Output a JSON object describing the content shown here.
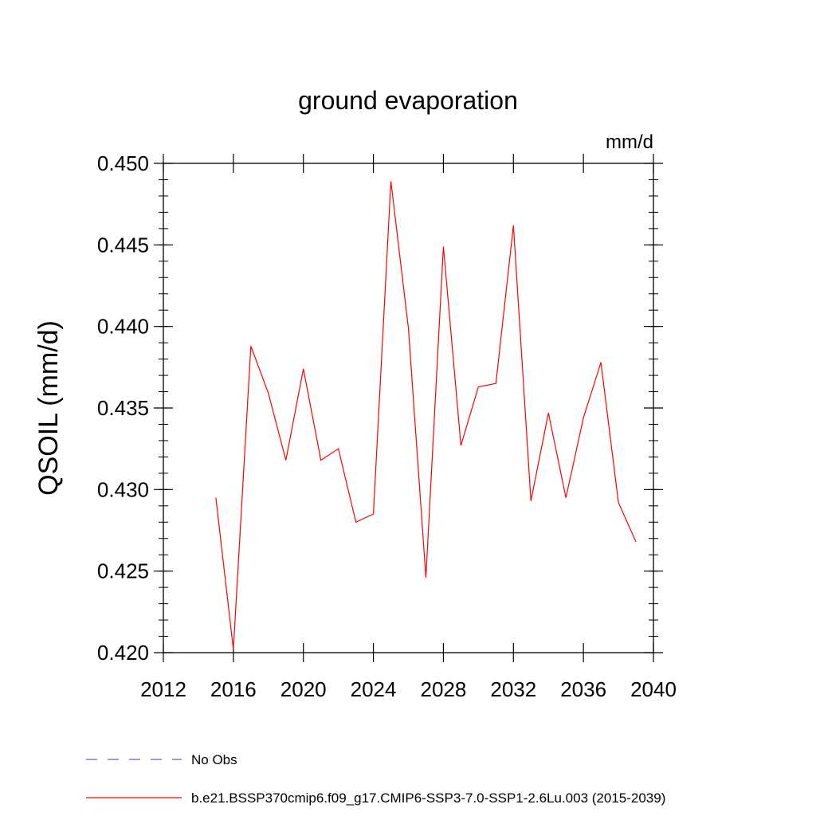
{
  "chart_data": {
    "type": "line",
    "title": "ground evaporation",
    "units_label": "mm/d",
    "ylabel": "QSOIL  (mm/d)",
    "xlabel": "",
    "xlim": [
      2012,
      2040
    ],
    "ylim": [
      0.42,
      0.45
    ],
    "x_ticks": [
      2012,
      2016,
      2020,
      2024,
      2028,
      2032,
      2036,
      2040
    ],
    "x_tick_labels": [
      "2012",
      "2016",
      "2020",
      "2024",
      "2028",
      "2032",
      "2036",
      "2040"
    ],
    "y_ticks": [
      0.42,
      0.425,
      0.43,
      0.435,
      0.44,
      0.445,
      0.45
    ],
    "y_tick_labels": [
      "0.420",
      "0.425",
      "0.430",
      "0.435",
      "0.440",
      "0.445",
      "0.450"
    ],
    "grid": false,
    "legend_position": "bottom",
    "legend": [
      {
        "label": "No Obs",
        "color": "#6a5acd",
        "style": "dashed"
      },
      {
        "label": "b.e21.BSSP370cmip6.f09_g17.CMIP6-SSP3-7.0-SSP1-2.6Lu.003 (2015-2039)",
        "color": "#ff0000",
        "style": "solid"
      }
    ],
    "series": [
      {
        "name": "b.e21.BSSP370cmip6.f09_g17.CMIP6-SSP3-7.0-SSP1-2.6Lu.003 (2015-2039)",
        "color": "#ff0000",
        "x": [
          2015,
          2016,
          2017,
          2018,
          2019,
          2020,
          2021,
          2022,
          2023,
          2024,
          2025,
          2026,
          2027,
          2028,
          2029,
          2030,
          2031,
          2032,
          2033,
          2034,
          2035,
          2036,
          2037,
          2038,
          2039
        ],
        "values": [
          0.4295,
          0.4202,
          0.4388,
          0.4359,
          0.4318,
          0.4374,
          0.4318,
          0.4325,
          0.428,
          0.4285,
          0.4489,
          0.4399,
          0.4246,
          0.4449,
          0.4327,
          0.4363,
          0.4365,
          0.4462,
          0.4293,
          0.4347,
          0.4295,
          0.4344,
          0.4378,
          0.4292,
          0.4268
        ]
      }
    ]
  }
}
